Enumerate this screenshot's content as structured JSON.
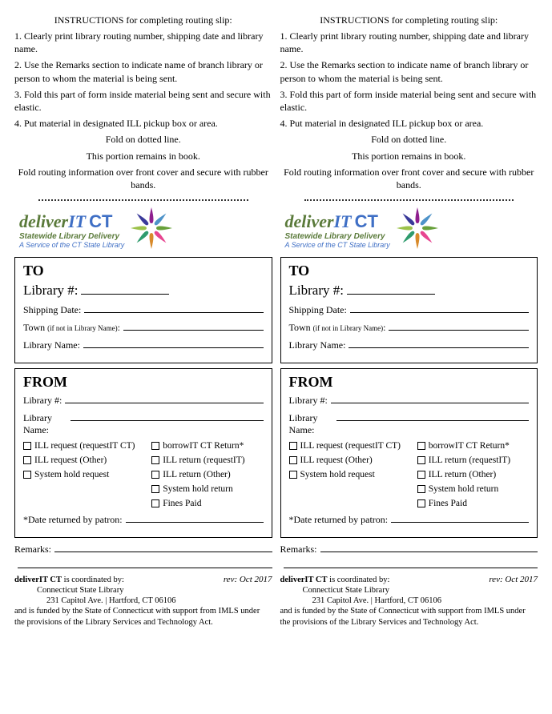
{
  "instructions_heading": "INSTRUCTIONS for completing routing slip:",
  "instructions": [
    "1.  Clearly print library routing number, shipping date and library name.",
    "2.  Use the Remarks section to indicate name of branch library or person to whom the material is being sent.",
    "3.  Fold this part of form inside material being sent and secure with elastic.",
    "4.  Put material in designated ILL pickup box or area."
  ],
  "fold_note": "Fold on dotted line.",
  "remains_note": "This portion remains in book.",
  "fold_over_note": "Fold routing information over front cover and secure with rubber bands.",
  "logo": {
    "prefix": "deliver",
    "it": "IT",
    "ct": "CT",
    "tagline1": "Statewide Library Delivery",
    "tagline2": "A Service of the CT State Library",
    "petal_colors": [
      "#8e1e8e",
      "#4e93c9",
      "#67a03a",
      "#e74590",
      "#d88a2a",
      "#2e9b6d",
      "#9cc24a",
      "#3a3a9a"
    ]
  },
  "to": {
    "heading": "TO",
    "library_num_label": "Library #:",
    "ship_date_label": "Shipping Date:",
    "town_label": "Town",
    "town_note": "(if not in Library Name)",
    "town_colon": ":",
    "library_name_label": "Library Name:"
  },
  "from": {
    "heading": "FROM",
    "library_num_label": "Library #:",
    "library_name_label": "Library Name:",
    "checks_col_a": [
      "ILL request (requestIT CT)",
      "ILL request (Other)",
      "System hold request"
    ],
    "checks_col_b": [
      "borrowIT CT Return*",
      "ILL return (requestIT)",
      "ILL return (Other)",
      "System hold return",
      "Fines Paid"
    ],
    "date_returned_label": "*Date returned by patron:"
  },
  "remarks_label": "Remarks:",
  "footer": {
    "rev": "rev: Oct 2017",
    "line1_a": "deliverIT CT",
    "line1_b": " is coordinated by:",
    "line2": "Connecticut State Library",
    "line3": "231 Capitol Ave.  |  Hartford, CT 06106",
    "line4": "and is funded by the State of Connecticut with support from IMLS under the provisions of the Library Services and Technology Act."
  }
}
